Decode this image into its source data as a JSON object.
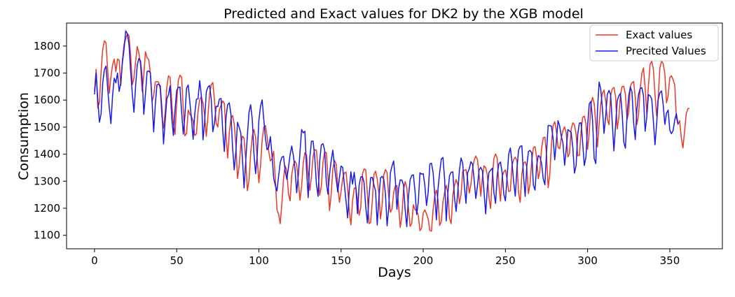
{
  "chart_data": {
    "type": "line",
    "title": "Predicted and Exact values for DK2 by the XGB model",
    "xlabel": "Days",
    "ylabel": "Consumption",
    "xlim": [
      -17,
      382
    ],
    "ylim": [
      1050,
      1885
    ],
    "x_ticks": [
      0,
      50,
      100,
      150,
      200,
      250,
      300,
      350
    ],
    "y_ticks": [
      1100,
      1200,
      1300,
      1400,
      1500,
      1600,
      1700,
      1800
    ],
    "legend_position": "upper right",
    "grid": false,
    "x_start": 0,
    "x_step": 1,
    "series": [
      {
        "name": "Exact values",
        "color": "#e8392a",
        "values": [
          1633,
          1714,
          1570,
          1593,
          1704,
          1788,
          1819,
          1812,
          1712,
          1625,
          1686,
          1730,
          1752,
          1705,
          1752,
          1748,
          1654,
          1749,
          1808,
          1826,
          1846,
          1838,
          1764,
          1657,
          1682,
          1742,
          1798,
          1775,
          1729,
          1632,
          1693,
          1779,
          1757,
          1750,
          1699,
          1596,
          1616,
          1667,
          1669,
          1666,
          1641,
          1539,
          1496,
          1556,
          1647,
          1690,
          1684,
          1591,
          1513,
          1473,
          1595,
          1673,
          1692,
          1685,
          1568,
          1468,
          1476,
          1563,
          1548,
          1539,
          1523,
          1469,
          1475,
          1559,
          1602,
          1613,
          1588,
          1544,
          1466,
          1539,
          1622,
          1657,
          1665,
          1598,
          1515,
          1500,
          1565,
          1582,
          1597,
          1588,
          1477,
          1385,
          1478,
          1532,
          1543,
          1513,
          1436,
          1310,
          1356,
          1433,
          1467,
          1459,
          1380,
          1265,
          1302,
          1403,
          1466,
          1491,
          1461,
          1382,
          1294,
          1356,
          1453,
          1500,
          1506,
          1466,
          1410,
          1375,
          1383,
          1411,
          1308,
          1196,
          1177,
          1143,
          1219,
          1309,
          1357,
          1337,
          1254,
          1227,
          1323,
          1361,
          1374,
          1362,
          1299,
          1230,
          1280,
          1368,
          1405,
          1397,
          1325,
          1266,
          1318,
          1392,
          1417,
          1415,
          1339,
          1248,
          1281,
          1371,
          1409,
          1405,
          1318,
          1191,
          1253,
          1346,
          1377,
          1364,
          1285,
          1222,
          1262,
          1311,
          1330,
          1334,
          1275,
          1189,
          1138,
          1226,
          1274,
          1276,
          1231,
          1174,
          1202,
          1326,
          1345,
          1343,
          1254,
          1143,
          1147,
          1226,
          1325,
          1337,
          1307,
          1257,
          1160,
          1211,
          1323,
          1343,
          1332,
          1243,
          1185,
          1197,
          1258,
          1282,
          1284,
          1210,
          1129,
          1172,
          1267,
          1299,
          1276,
          1199,
          1133,
          1144,
          1213,
          1194,
          1192,
          1173,
          1117,
          1127,
          1182,
          1194,
          1179,
          1160,
          1118,
          1115,
          1195,
          1246,
          1267,
          1232,
          1136,
          1152,
          1223,
          1258,
          1285,
          1253,
          1163,
          1143,
          1249,
          1283,
          1306,
          1287,
          1217,
          1251,
          1336,
          1340,
          1343,
          1309,
          1256,
          1288,
          1346,
          1378,
          1393,
          1380,
          1322,
          1245,
          1313,
          1357,
          1350,
          1323,
          1241,
          1199,
          1313,
          1384,
          1401,
          1385,
          1290,
          1226,
          1317,
          1334,
          1342,
          1307,
          1262,
          1264,
          1358,
          1380,
          1389,
          1375,
          1257,
          1222,
          1326,
          1366,
          1372,
          1353,
          1254,
          1291,
          1375,
          1424,
          1428,
          1387,
          1309,
          1340,
          1421,
          1461,
          1463,
          1398,
          1276,
          1326,
          1438,
          1505,
          1520,
          1488,
          1426,
          1420,
          1460,
          1487,
          1501,
          1478,
          1390,
          1402,
          1493,
          1516,
          1509,
          1474,
          1394,
          1396,
          1484,
          1536,
          1541,
          1512,
          1418,
          1479,
          1584,
          1610,
          1588,
          1511,
          1427,
          1511,
          1586,
          1625,
          1637,
          1596,
          1530,
          1509,
          1617,
          1641,
          1647,
          1615,
          1493,
          1537,
          1621,
          1650,
          1651,
          1621,
          1528,
          1555,
          1652,
          1664,
          1669,
          1609,
          1510,
          1546,
          1642,
          1698,
          1719,
          1646,
          1546,
          1653,
          1732,
          1744,
          1716,
          1622,
          1541,
          1614,
          1721,
          1744,
          1734,
          1698,
          1590,
          1616,
          1683,
          1690,
          1676,
          1656,
          1536,
          1510,
          1524,
          1461,
          1423,
          1484,
          1549,
          1568,
          1570
        ]
      },
      {
        "name": "Precited Values",
        "color": "#1a1ae6",
        "values": [
          1621,
          1699,
          1603,
          1518,
          1549,
          1664,
          1712,
          1726,
          1644,
          1571,
          1513,
          1617,
          1681,
          1664,
          1700,
          1632,
          1665,
          1740,
          1790,
          1856,
          1846,
          1804,
          1706,
          1623,
          1555,
          1652,
          1730,
          1754,
          1745,
          1681,
          1547,
          1622,
          1706,
          1708,
          1700,
          1598,
          1482,
          1584,
          1657,
          1659,
          1653,
          1568,
          1438,
          1525,
          1605,
          1620,
          1653,
          1532,
          1469,
          1564,
          1636,
          1647,
          1648,
          1556,
          1474,
          1543,
          1644,
          1656,
          1594,
          1529,
          1455,
          1549,
          1603,
          1605,
          1672,
          1617,
          1453,
          1520,
          1630,
          1648,
          1654,
          1605,
          1483,
          1516,
          1577,
          1576,
          1604,
          1606,
          1487,
          1410,
          1534,
          1583,
          1590,
          1548,
          1426,
          1342,
          1410,
          1518,
          1500,
          1478,
          1383,
          1275,
          1374,
          1469,
          1555,
          1583,
          1528,
          1402,
          1328,
          1395,
          1525,
          1577,
          1601,
          1527,
          1459,
          1416,
          1426,
          1465,
          1396,
          1312,
          1284,
          1264,
          1318,
          1369,
          1389,
          1392,
          1338,
          1307,
          1351,
          1398,
          1430,
          1395,
          1344,
          1257,
          1323,
          1406,
          1491,
          1479,
          1485,
          1343,
          1239,
          1387,
          1448,
          1448,
          1389,
          1290,
          1244,
          1374,
          1434,
          1439,
          1416,
          1298,
          1252,
          1326,
          1376,
          1415,
          1353,
          1308,
          1260,
          1313,
          1356,
          1351,
          1287,
          1228,
          1164,
          1268,
          1335,
          1289,
          1333,
          1276,
          1180,
          1285,
          1316,
          1317,
          1295,
          1206,
          1146,
          1243,
          1313,
          1314,
          1286,
          1264,
          1138,
          1236,
          1312,
          1318,
          1307,
          1254,
          1135,
          1201,
          1331,
          1356,
          1375,
          1306,
          1196,
          1272,
          1305,
          1304,
          1286,
          1194,
          1132,
          1241,
          1305,
          1321,
          1324,
          1263,
          1177,
          1223,
          1331,
          1326,
          1328,
          1283,
          1210,
          1258,
          1363,
          1367,
          1332,
          1251,
          1157,
          1272,
          1333,
          1382,
          1388,
          1307,
          1153,
          1258,
          1321,
          1333,
          1334,
          1240,
          1188,
          1260,
          1340,
          1386,
          1366,
          1284,
          1218,
          1331,
          1346,
          1372,
          1363,
          1304,
          1236,
          1284,
          1342,
          1351,
          1338,
          1260,
          1179,
          1278,
          1333,
          1341,
          1348,
          1257,
          1218,
          1322,
          1364,
          1371,
          1331,
          1252,
          1227,
          1314,
          1401,
          1423,
          1370,
          1298,
          1245,
          1345,
          1415,
          1429,
          1431,
          1322,
          1244,
          1355,
          1410,
          1414,
          1405,
          1285,
          1267,
          1358,
          1395,
          1390,
          1366,
          1309,
          1287,
          1407,
          1506,
          1506,
          1503,
          1459,
          1379,
          1449,
          1524,
          1504,
          1466,
          1441,
          1359,
          1418,
          1491,
          1486,
          1480,
          1424,
          1330,
          1358,
          1474,
          1515,
          1516,
          1442,
          1358,
          1390,
          1506,
          1586,
          1595,
          1525,
          1384,
          1365,
          1561,
          1667,
          1640,
          1570,
          1477,
          1540,
          1621,
          1636,
          1620,
          1518,
          1412,
          1505,
          1597,
          1616,
          1625,
          1553,
          1445,
          1422,
          1543,
          1615,
          1648,
          1629,
          1517,
          1454,
          1566,
          1621,
          1643,
          1646,
          1616,
          1485,
          1537,
          1620,
          1616,
          1605,
          1524,
          1435,
          1512,
          1605,
          1627,
          1634,
          1581,
          1510,
          1552,
          1563,
          1489,
          1476,
          1487,
          1526,
          1550,
          1511
        ]
      }
    ]
  }
}
